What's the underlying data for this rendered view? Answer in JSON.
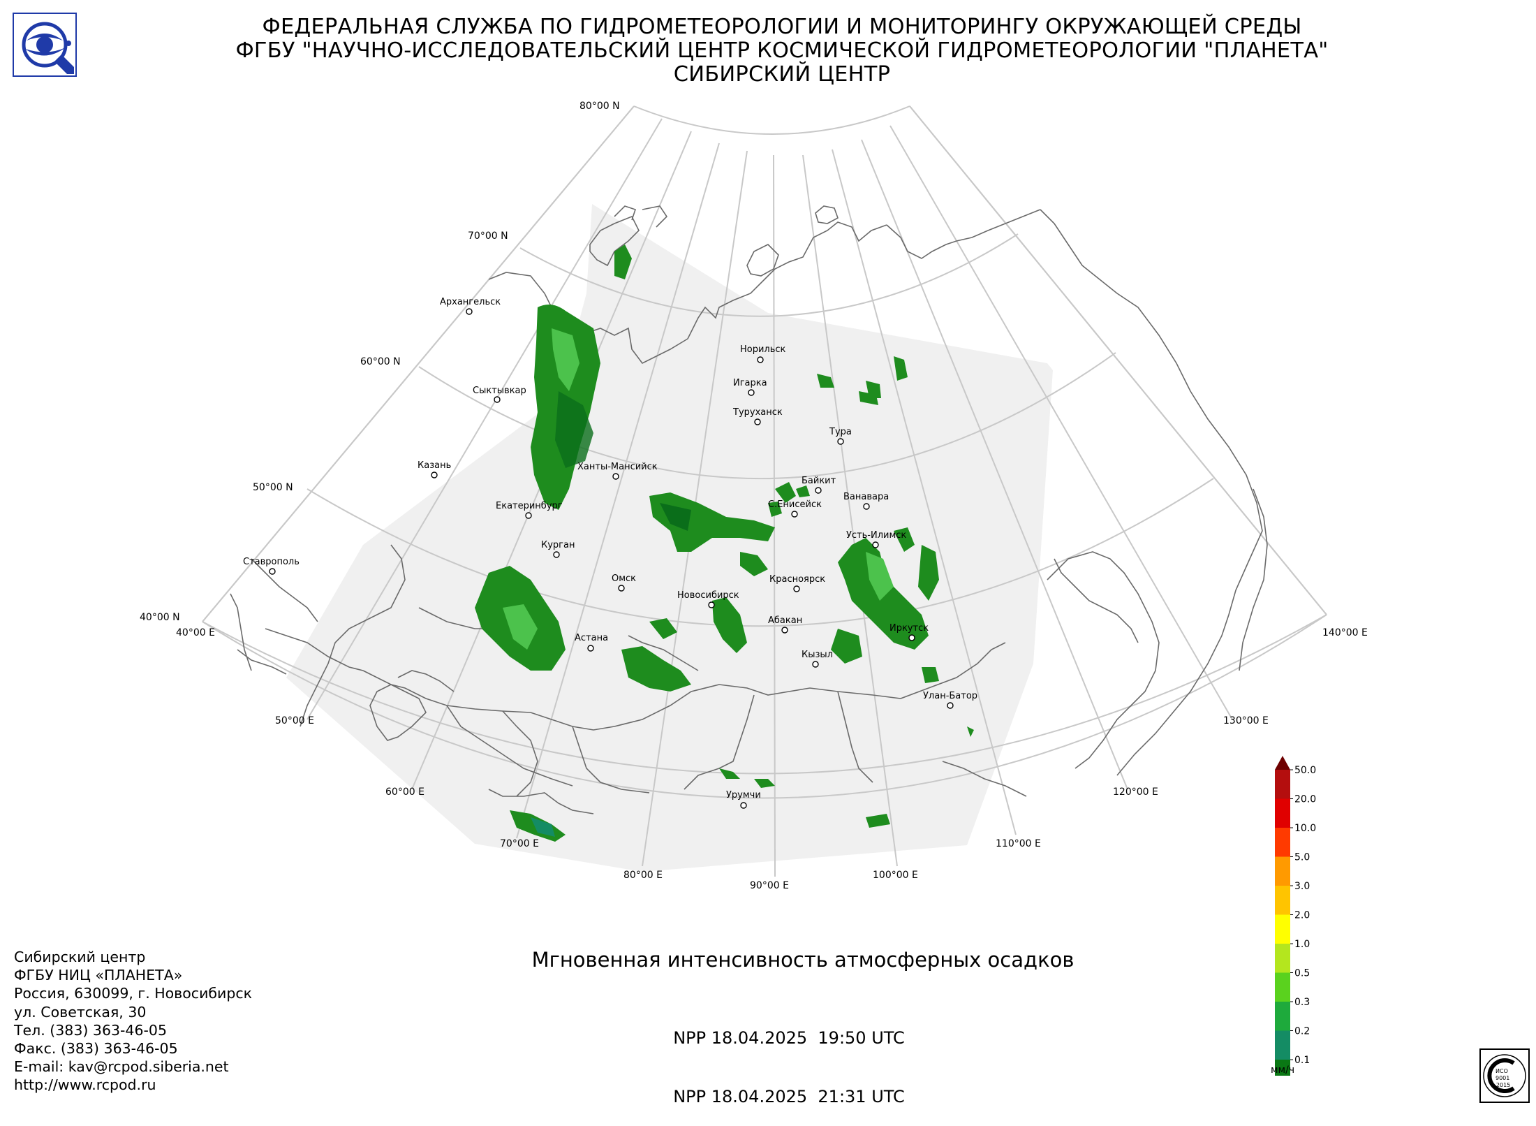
{
  "header": {
    "line1": "ФЕДЕРАЛЬНАЯ СЛУЖБА ПО ГИДРОМЕТЕОРОЛОГИИ И МОНИТОРИНГУ ОКРУЖАЮЩЕЙ СРЕДЫ",
    "line2": "ФГБУ \"НАУЧНО-ИССЛЕДОВАТЕЛЬСКИЙ ЦЕНТР КОСМИЧЕСКОЙ ГИДРОМЕТЕОРОЛОГИИ \"ПЛАНЕТА\"",
    "line3": "СИБИРСКИЙ ЦЕНТР"
  },
  "map": {
    "projection": "conic",
    "latitude_labels": [
      "80°00 N",
      "70°00 N",
      "60°00 N",
      "50°00 N",
      "40°00 N"
    ],
    "longitude_labels": [
      "40°00 E",
      "50°00 E",
      "60°00 E",
      "70°00 E",
      "80°00 E",
      "90°00 E",
      "100°00 E",
      "110°00 E",
      "120°00 E",
      "130°00 E",
      "140°00 E"
    ],
    "cities": [
      "Архангельск",
      "Сыктывкар",
      "Казань",
      "Екатеринбург",
      "Ханты-Мансийск",
      "Ставрополь",
      "Курган",
      "Омск",
      "Астана",
      "Новосибирск",
      "Норильск",
      "Игарка",
      "Туруханск",
      "Тура",
      "Байкит",
      "С.Енисейск",
      "Ванавара",
      "Усть-Илимск",
      "Красноярск",
      "Абакан",
      "Кызыл",
      "Иркутск",
      "Улан-Батор",
      "Урумчи"
    ],
    "colors": {
      "coverage": "#f0f0f0",
      "graticule": "#c8c8c8",
      "coastline": "#6a6a6a",
      "precip_main": "#1e8c1e",
      "precip_light": "#4cc24c",
      "precip_dark": "#0a6e1a"
    }
  },
  "product": {
    "title": "Мгновенная интенсивность атмосферных осадков",
    "pass1": "NPP 18.04.2025  19:50 UTC",
    "pass2": "NPP 18.04.2025  21:31 UTC"
  },
  "organization": {
    "lines": [
      "Сибирский центр",
      "ФГБУ НИЦ «ПЛАНЕТА»",
      "Россия, 630099, г. Новосибирск",
      "ул. Советская, 30",
      "Тел. (383) 363-46-05",
      "Факс. (383) 363-46-05",
      "E-mail: kav@rcpod.siberia.net",
      "http://www.rcpod.ru"
    ]
  },
  "legend": {
    "unit": "мм/ч",
    "ticks": [
      "50.0",
      "20.0",
      "10.0",
      "5.0",
      "3.0",
      "2.0",
      "1.0",
      "0.5",
      "0.3",
      "0.2",
      "0.1"
    ],
    "colors": [
      "#b40e0e",
      "#e00000",
      "#ff3a00",
      "#ff9a00",
      "#ffc400",
      "#ffff00",
      "#b4e61e",
      "#5ad21e",
      "#1eaa3c",
      "#148c64",
      "#0a7814"
    ],
    "over_color": "#6e0000",
    "under_color": "#c0c0c0"
  },
  "logos": {
    "agency_logo": "roshydromet-globe-logo",
    "iso_badge": "iso-9001-2015-certification-stamp",
    "iso_text": "ИСО 9001 -2015"
  }
}
